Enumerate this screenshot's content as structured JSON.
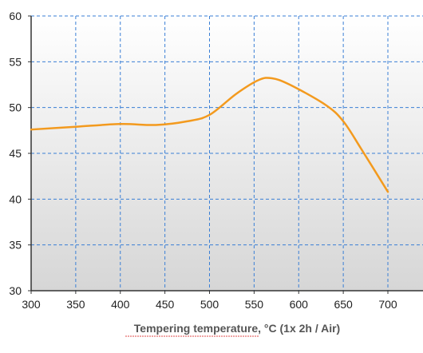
{
  "chart_data": {
    "type": "line",
    "xlabel": "Tempering temperature, °C (1x 2h / Air)",
    "ylabel": "",
    "xlim": [
      300,
      725
    ],
    "ylim": [
      30,
      60
    ],
    "x_ticks": [
      300,
      350,
      400,
      450,
      500,
      550,
      600,
      650,
      700
    ],
    "y_ticks": [
      30,
      35,
      40,
      45,
      50,
      55,
      60
    ],
    "grid": true,
    "legend": "none",
    "series": [
      {
        "color": "#f39a1e",
        "x": [
          300,
          350,
          400,
          440,
          475,
          500,
          530,
          555,
          570,
          590,
          630,
          650,
          670,
          700
        ],
        "y": [
          47.6,
          47.9,
          48.2,
          48.1,
          48.5,
          49.2,
          51.5,
          53.0,
          53.2,
          52.5,
          50.3,
          48.5,
          45.5,
          40.8
        ]
      }
    ]
  }
}
